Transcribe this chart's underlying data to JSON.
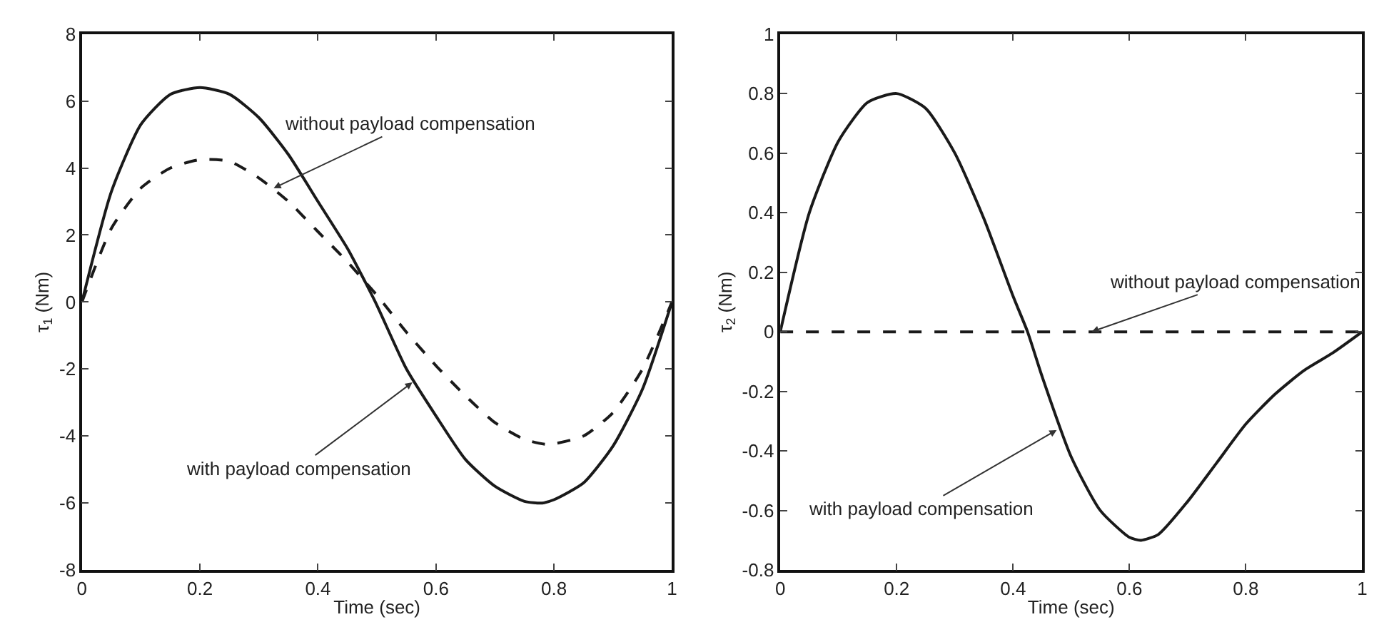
{
  "chart_data": [
    {
      "type": "line",
      "xlabel": "Time (sec)",
      "ylabel": "τ$_{1}$ (Nm)",
      "xlim": [
        0,
        1
      ],
      "ylim": [
        -8,
        8
      ],
      "xticks": [
        0,
        0.2,
        0.4,
        0.6,
        0.8,
        1
      ],
      "yticks": [
        -8,
        -6,
        -4,
        -2,
        0,
        2,
        4,
        6,
        8
      ],
      "marker": "none",
      "series": [
        {
          "color": "#1a1a1a",
          "line_style": "solid",
          "x": [
            0,
            0.05,
            0.1,
            0.15,
            0.2,
            0.25,
            0.3,
            0.35,
            0.4,
            0.45,
            0.48,
            0.5,
            0.55,
            0.6,
            0.65,
            0.7,
            0.75,
            0.78,
            0.8,
            0.85,
            0.9,
            0.95,
            1
          ],
          "values": [
            0,
            3.3,
            5.3,
            6.2,
            6.4,
            6.2,
            5.5,
            4.4,
            3.0,
            1.6,
            0.6,
            -0.1,
            -2.0,
            -3.4,
            -4.7,
            -5.5,
            -5.95,
            -6.0,
            -5.9,
            -5.4,
            -4.3,
            -2.6,
            0
          ]
        },
        {
          "color": "#1a1a1a",
          "line_style": "dashed",
          "x": [
            0,
            0.05,
            0.1,
            0.15,
            0.2,
            0.25,
            0.3,
            0.35,
            0.4,
            0.45,
            0.48,
            0.5,
            0.55,
            0.6,
            0.65,
            0.7,
            0.75,
            0.79,
            0.85,
            0.9,
            0.95,
            1
          ],
          "values": [
            0,
            2.2,
            3.4,
            4.0,
            4.25,
            4.2,
            3.7,
            3.0,
            2.1,
            1.2,
            0.6,
            0.2,
            -0.9,
            -1.9,
            -2.8,
            -3.6,
            -4.1,
            -4.25,
            -4.0,
            -3.3,
            -2.0,
            0
          ]
        }
      ],
      "annotations": [
        {
          "text": "without payload compensation",
          "x": 0.325,
          "y": 3.4
        },
        {
          "text": "with payload compensation",
          "x": 0.56,
          "y": -2.4
        }
      ]
    },
    {
      "type": "line",
      "xlabel": "Time (sec)",
      "ylabel": "τ$_{2}$ (Nm)",
      "xlim": [
        0,
        1
      ],
      "ylim": [
        -0.8,
        1
      ],
      "xticks": [
        0,
        0.2,
        0.4,
        0.6,
        0.8,
        1
      ],
      "yticks": [
        -0.8,
        -0.6,
        -0.4,
        -0.2,
        0,
        0.2,
        0.4,
        0.6,
        0.8,
        1
      ],
      "marker": "none",
      "series": [
        {
          "color": "#1a1a1a",
          "line_style": "solid",
          "x": [
            0,
            0.05,
            0.1,
            0.15,
            0.2,
            0.25,
            0.3,
            0.35,
            0.4,
            0.425,
            0.45,
            0.5,
            0.55,
            0.6,
            0.62,
            0.65,
            0.7,
            0.75,
            0.8,
            0.85,
            0.9,
            0.95,
            1
          ],
          "values": [
            0,
            0.4,
            0.64,
            0.77,
            0.8,
            0.75,
            0.6,
            0.38,
            0.12,
            0,
            -0.15,
            -0.42,
            -0.6,
            -0.69,
            -0.7,
            -0.68,
            -0.57,
            -0.44,
            -0.31,
            -0.21,
            -0.13,
            -0.07,
            0
          ]
        },
        {
          "color": "#1a1a1a",
          "line_style": "dashed",
          "x": [
            0,
            1
          ],
          "values": [
            0,
            0
          ]
        }
      ],
      "annotations": [
        {
          "text": "without payload compensation",
          "x": 0.535,
          "y": 0
        },
        {
          "text": "with payload compensation",
          "x": 0.475,
          "y": -0.33
        }
      ]
    }
  ]
}
